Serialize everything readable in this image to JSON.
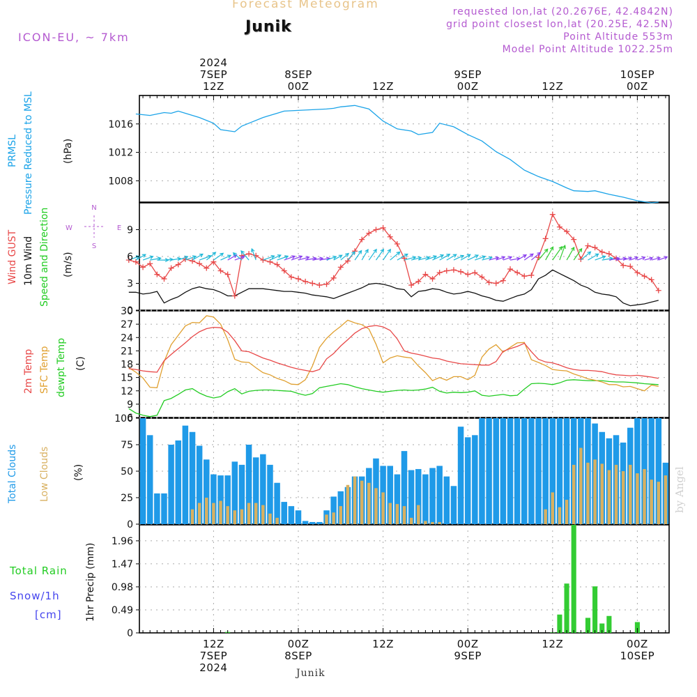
{
  "header": {
    "title": "Forecast Meteogram",
    "place": "Junik",
    "model": "ICON-EU, ~ 7km",
    "requested": "requested lon,lat (20.2676E, 42.4842N)",
    "gridpoint": "grid point closest lon,lat (20.25E, 42.5N)",
    "point_alt": "Point Altitude 553m",
    "model_alt": "Model Point Altitude 1022.25m",
    "credit": "by Angel",
    "footer": "Junik"
  },
  "colors": {
    "pressure": "#1aa3e8",
    "gust": "#e84848",
    "wind": "#111111",
    "t2m": "#e84848",
    "sfc": "#e0a030",
    "dew": "#22cc22",
    "total_cloud": "#1f9ae8",
    "low_cloud": "#d8b060",
    "rain": "#33cc33",
    "snow": "#4444ee",
    "arrow_cold": "#8a3ff0",
    "arrow_mid": "#1fb8d8",
    "arrow_warm": "#33cc33"
  },
  "time_axis": {
    "top_ticks": [
      {
        "lines": [
          "2024",
          "7SEP",
          "12Z"
        ],
        "hour": 12
      },
      {
        "lines": [
          "8SEP",
          "00Z"
        ],
        "hour": 24
      },
      {
        "lines": [
          "12Z"
        ],
        "hour": 36
      },
      {
        "lines": [
          "9SEP",
          "00Z"
        ],
        "hour": 48
      },
      {
        "lines": [
          "12Z"
        ],
        "hour": 60
      },
      {
        "lines": [
          "10SEP",
          "00Z"
        ],
        "hour": 72
      }
    ],
    "bottom_ticks": [
      {
        "lines": [
          "12Z",
          "7SEP",
          "2024"
        ],
        "hour": 12
      },
      {
        "lines": [
          "00Z",
          "8SEP"
        ],
        "hour": 24
      },
      {
        "lines": [
          "12Z"
        ],
        "hour": 36
      },
      {
        "lines": [
          "00Z",
          "9SEP"
        ],
        "hour": 48
      },
      {
        "lines": [
          "12Z"
        ],
        "hour": 60
      },
      {
        "lines": [
          "00Z",
          "10SEP"
        ],
        "hour": 72
      }
    ]
  },
  "panels": {
    "pressure": {
      "labels": [
        "PRMSL",
        "Pressure Reduced to MSL"
      ],
      "unit": "(hPa)",
      "ticks": [
        "1008",
        "1012",
        "1016"
      ]
    },
    "wind": {
      "labels": [
        "Wind GUST",
        "10m Wind",
        "Speed and Direction"
      ],
      "unit": "(m/s)",
      "ticks": [
        "0",
        "3",
        "6",
        "9"
      ],
      "compass": {
        "n": "N",
        "s": "S",
        "w": "W",
        "e": "E"
      }
    },
    "temp": {
      "labels": [
        "2m Temp",
        "SFC Temp",
        "dewpt Temp"
      ],
      "unit": "(C)",
      "ticks": [
        "6",
        "9",
        "12",
        "15",
        "18",
        "21",
        "24",
        "27",
        "30"
      ]
    },
    "cloud": {
      "labels": [
        "Total Clouds",
        "Low Clouds"
      ],
      "unit": "(%)",
      "ticks": [
        "0",
        "25",
        "50",
        "75",
        "100"
      ]
    },
    "precip": {
      "labels": [
        "Total  Rain",
        "Snow/1h",
        "[cm]"
      ],
      "unit": "1hr Precip (mm)",
      "ticks": [
        "0",
        "0.49",
        "0.98",
        "1.47",
        "1.96"
      ]
    }
  },
  "chart_data": [
    {
      "type": "line",
      "name": "pressure",
      "ylim": [
        1005,
        1020
      ],
      "x_hours": [
        1,
        3,
        5,
        6,
        7,
        8,
        10,
        12,
        13,
        15,
        16,
        17,
        19,
        21,
        22,
        24,
        26,
        28,
        29,
        30,
        32,
        34,
        36,
        38,
        40,
        41,
        43,
        44,
        46,
        48,
        50,
        52,
        54,
        56,
        58,
        60,
        62,
        63,
        65,
        66,
        68,
        70,
        72,
        74,
        75
      ],
      "values": [
        1017.4,
        1017.2,
        1017.6,
        1017.5,
        1017.8,
        1017.5,
        1016.9,
        1016.1,
        1015.2,
        1014.9,
        1015.7,
        1016.1,
        1016.9,
        1017.5,
        1017.8,
        1017.9,
        1018.0,
        1018.1,
        1018.2,
        1018.4,
        1018.6,
        1018.1,
        1016.4,
        1015.3,
        1015.0,
        1014.5,
        1014.8,
        1016.1,
        1015.6,
        1014.5,
        1013.6,
        1012.1,
        1011.0,
        1009.5,
        1008.6,
        1007.9,
        1007.0,
        1006.6,
        1006.5,
        1006.6,
        1006.1,
        1005.7,
        1005.2,
        1004.9,
        1005.0
      ]
    },
    {
      "type": "line",
      "name": "wind",
      "ylim": [
        0,
        12
      ],
      "x_hours": [
        0,
        1,
        2,
        3,
        4,
        5,
        6,
        7,
        8,
        9,
        10,
        11,
        12,
        13,
        14,
        15,
        16,
        17,
        18,
        19,
        20,
        21,
        22,
        23,
        24,
        25,
        26,
        27,
        28,
        29,
        30,
        31,
        32,
        33,
        34,
        35,
        36,
        37,
        38,
        39,
        40,
        41,
        42,
        43,
        44,
        45,
        46,
        47,
        48,
        49,
        50,
        51,
        52,
        53,
        54,
        55,
        56,
        57,
        58,
        59,
        60,
        61,
        62,
        63,
        64,
        65,
        66,
        67,
        68,
        69,
        70,
        71,
        72,
        73,
        74,
        75
      ],
      "gust": [
        5.6,
        5.4,
        4.8,
        5.2,
        4.0,
        3.5,
        4.7,
        5.1,
        5.7,
        5.5,
        5.2,
        4.7,
        5.4,
        4.4,
        4.0,
        1.6,
        6.1,
        6.3,
        6.1,
        5.6,
        5.4,
        5.1,
        4.4,
        3.7,
        3.5,
        3.2,
        3.0,
        2.8,
        2.9,
        3.6,
        4.8,
        5.5,
        6.6,
        7.9,
        8.6,
        9.0,
        9.2,
        8.2,
        7.4,
        5.8,
        2.8,
        3.2,
        4.0,
        3.5,
        4.2,
        4.4,
        4.5,
        4.3,
        4.0,
        4.2,
        3.7,
        3.1,
        3.0,
        3.3,
        4.6,
        4.2,
        3.8,
        3.9,
        5.9,
        8.0,
        10.7,
        9.3,
        8.8,
        7.9,
        5.7,
        7.2,
        7.0,
        6.5,
        6.3,
        5.8,
        5.0,
        4.9,
        4.2,
        3.8,
        3.4,
        2.2
      ],
      "speed": [
        2.0,
        2.0,
        1.8,
        1.9,
        2.1,
        0.8,
        1.2,
        1.5,
        2.0,
        2.4,
        2.6,
        2.4,
        2.3,
        2.0,
        1.6,
        1.6,
        2.0,
        2.4,
        2.4,
        2.4,
        2.3,
        2.2,
        2.1,
        2.1,
        2.0,
        1.9,
        1.7,
        1.6,
        1.5,
        1.3,
        1.6,
        1.9,
        2.2,
        2.5,
        2.9,
        3.0,
        2.9,
        2.7,
        2.4,
        2.3,
        1.5,
        2.1,
        2.2,
        2.4,
        2.3,
        2.0,
        1.8,
        1.9,
        2.1,
        1.9,
        1.6,
        1.4,
        1.1,
        1.0,
        1.3,
        1.6,
        1.8,
        2.3,
        3.5,
        3.9,
        4.5,
        4.1,
        3.7,
        3.3,
        2.8,
        2.5,
        2.0,
        1.8,
        1.7,
        1.5,
        0.8,
        0.5,
        0.6,
        0.7,
        0.9,
        1.1
      ],
      "direction_deg": [
        250,
        240,
        250,
        260,
        270,
        265,
        260,
        250,
        250,
        240,
        250,
        230,
        235,
        245,
        240,
        250,
        130,
        140,
        160,
        250,
        245,
        250,
        250,
        250,
        255,
        260,
        260,
        260,
        250,
        240,
        230,
        220,
        215,
        210,
        215,
        215,
        215,
        230,
        240,
        255,
        255,
        255,
        250,
        245,
        240,
        240,
        245,
        240,
        245,
        250,
        255,
        255,
        250,
        250,
        260,
        240,
        235,
        230,
        220,
        210,
        215,
        200,
        210,
        215,
        230,
        240,
        250,
        260,
        260,
        260,
        255,
        250,
        250,
        255,
        255,
        250
      ],
      "arrow_color": [
        "mid",
        "mid",
        "mid",
        "mid",
        "mid",
        "mid",
        "mid",
        "mid",
        "mid",
        "mid",
        "mid",
        "mid",
        "mid",
        "mid",
        "cold",
        "cold",
        "mid",
        "mid",
        "mid",
        "mid",
        "mid",
        "mid",
        "cold",
        "cold",
        "cold",
        "cold",
        "cold",
        "cold",
        "mid",
        "mid",
        "mid",
        "mid",
        "mid",
        "mid",
        "mid",
        "mid",
        "mid",
        "mid",
        "mid",
        "mid",
        "mid",
        "mid",
        "mid",
        "mid",
        "mid",
        "mid",
        "mid",
        "mid",
        "mid",
        "mid",
        "mid",
        "cold",
        "cold",
        "cold",
        "cold",
        "cold",
        "cold",
        "cold",
        "warm",
        "warm",
        "warm",
        "warm",
        "warm",
        "warm",
        "mid",
        "mid",
        "mid",
        "mid",
        "cold",
        "cold",
        "cold",
        "cold",
        "cold",
        "cold",
        "cold",
        "cold"
      ]
    },
    {
      "type": "line",
      "name": "temperature",
      "ylim": [
        6,
        30
      ],
      "x_hours": [
        0,
        1,
        2,
        3,
        4,
        5,
        6,
        7,
        8,
        9,
        10,
        11,
        12,
        13,
        14,
        15,
        16,
        17,
        18,
        19,
        20,
        21,
        22,
        23,
        24,
        25,
        26,
        27,
        28,
        29,
        30,
        31,
        32,
        33,
        34,
        35,
        36,
        37,
        38,
        39,
        40,
        41,
        42,
        43,
        44,
        45,
        46,
        47,
        48,
        49,
        50,
        51,
        52,
        53,
        54,
        55,
        56,
        57,
        58,
        59,
        60,
        61,
        62,
        63,
        64,
        65,
        66,
        67,
        68,
        69,
        70,
        71,
        72,
        73,
        74,
        75
      ],
      "t2m": [
        17.0,
        16.8,
        16.5,
        16.3,
        16.2,
        18.8,
        20.2,
        21.5,
        22.8,
        24.2,
        25.3,
        26.0,
        26.3,
        26.2,
        25.2,
        23.3,
        21.0,
        20.8,
        20.1,
        19.4,
        18.9,
        18.3,
        17.8,
        17.3,
        16.9,
        16.6,
        16.3,
        16.8,
        19.2,
        20.4,
        22.1,
        23.5,
        25.0,
        26.0,
        26.5,
        26.7,
        26.4,
        25.6,
        23.7,
        21.0,
        20.5,
        20.2,
        19.8,
        19.4,
        19.2,
        18.7,
        18.4,
        18.1,
        18.0,
        17.9,
        17.8,
        17.8,
        18.6,
        20.9,
        21.5,
        22.0,
        22.7,
        20.8,
        19.1,
        18.5,
        18.3,
        17.8,
        17.2,
        16.8,
        16.6,
        16.6,
        16.5,
        16.3,
        15.9,
        15.6,
        15.5,
        15.4,
        15.5,
        15.3,
        15.1,
        14.8
      ],
      "sfc": [
        17.2,
        16.2,
        14.9,
        12.8,
        12.7,
        18.6,
        22.4,
        24.5,
        26.6,
        27.4,
        27.3,
        28.9,
        28.6,
        27.0,
        23.5,
        19.1,
        18.5,
        18.4,
        17.2,
        16.1,
        15.6,
        14.8,
        14.3,
        13.5,
        13.4,
        14.5,
        17.6,
        21.8,
        23.8,
        25.3,
        26.5,
        27.9,
        27.3,
        26.9,
        25.9,
        22.5,
        18.3,
        19.4,
        19.9,
        19.6,
        19.4,
        17.6,
        16.1,
        14.3,
        15.0,
        14.4,
        15.2,
        15.2,
        14.5,
        15.5,
        19.6,
        21.4,
        22.4,
        20.7,
        21.8,
        22.8,
        22.9,
        19.0,
        18.4,
        17.7,
        16.8,
        16.6,
        16.5,
        15.8,
        15.3,
        14.7,
        14.4,
        14.0,
        13.4,
        13.4,
        12.9,
        13.0,
        12.5,
        12.0,
        13.3,
        13.0
      ],
      "dewpt": [
        8.0,
        7.0,
        6.5,
        6.2,
        6.5,
        9.8,
        10.3,
        11.2,
        12.2,
        12.5,
        11.5,
        10.8,
        10.4,
        10.7,
        11.8,
        12.5,
        11.3,
        11.9,
        12.1,
        12.2,
        12.2,
        12.1,
        12.0,
        11.9,
        11.4,
        11.0,
        11.4,
        12.7,
        13.0,
        13.3,
        13.6,
        13.4,
        12.9,
        12.5,
        12.2,
        11.9,
        11.7,
        11.9,
        12.1,
        12.2,
        12.1,
        12.2,
        12.4,
        12.8,
        11.9,
        11.5,
        11.7,
        11.6,
        11.7,
        12.0,
        11.0,
        10.8,
        11.0,
        11.2,
        10.9,
        11.0,
        12.4,
        13.6,
        13.7,
        13.6,
        13.4,
        13.8,
        14.4,
        14.5,
        14.4,
        14.3,
        14.3,
        14.3,
        14.1,
        14.0,
        14.0,
        13.9,
        13.8,
        13.6,
        13.5,
        13.4
      ]
    },
    {
      "type": "bar",
      "name": "clouds",
      "ylim": [
        0,
        100
      ],
      "x_hours": [
        0,
        1,
        2,
        3,
        4,
        5,
        6,
        7,
        8,
        9,
        10,
        11,
        12,
        13,
        14,
        15,
        16,
        17,
        18,
        19,
        20,
        21,
        22,
        23,
        24,
        25,
        26,
        27,
        28,
        29,
        30,
        31,
        32,
        33,
        34,
        35,
        36,
        37,
        38,
        39,
        40,
        41,
        42,
        43,
        44,
        45,
        46,
        47,
        48,
        49,
        50,
        51,
        52,
        53,
        54,
        55,
        56,
        57,
        58,
        59,
        60,
        61,
        62,
        63,
        64,
        65,
        66,
        67,
        68,
        69,
        70,
        71,
        72,
        73,
        74,
        75,
        76
      ],
      "total": [
        63,
        72,
        100,
        84,
        29,
        29,
        75,
        79,
        93,
        87,
        74,
        61,
        47,
        46,
        46,
        59,
        56,
        75,
        63,
        66,
        56,
        39,
        21,
        17,
        13,
        3,
        2,
        2,
        13,
        26,
        31,
        35,
        45,
        45,
        53,
        62,
        55,
        55,
        47,
        69,
        51,
        52,
        47,
        53,
        55,
        45,
        36,
        92,
        82,
        84,
        100,
        100,
        100,
        100,
        100,
        100,
        100,
        100,
        100,
        100,
        100,
        100,
        100,
        100,
        100,
        100,
        95,
        87,
        81,
        84,
        77,
        91,
        100,
        100,
        100,
        100,
        58
      ],
      "low": [
        0,
        0,
        0,
        0,
        0,
        0,
        0,
        0,
        0,
        14,
        20,
        25,
        20,
        22,
        17,
        13,
        14,
        20,
        20,
        18,
        10,
        6,
        0,
        0,
        0,
        0,
        0,
        0,
        9,
        11,
        17,
        37,
        45,
        41,
        39,
        34,
        30,
        20,
        19,
        17,
        6,
        18,
        3,
        2,
        2,
        0,
        0,
        0,
        0,
        0,
        0,
        0,
        0,
        0,
        0,
        0,
        0,
        0,
        0,
        14,
        30,
        16,
        23,
        56,
        72,
        58,
        61,
        57,
        51,
        56,
        50,
        56,
        48,
        52,
        42,
        40,
        46
      ]
    },
    {
      "type": "bar",
      "name": "precipitation",
      "ylim": [
        0,
        2.3
      ],
      "x_hours": [
        12,
        13,
        14,
        15,
        16,
        17,
        18,
        19,
        20,
        21,
        22,
        23,
        24,
        25,
        26,
        27,
        28,
        29,
        30,
        31,
        32,
        33,
        34,
        35,
        36,
        37,
        38,
        39,
        40,
        41,
        42,
        43,
        44,
        45,
        46,
        47,
        48,
        49,
        50,
        51,
        52,
        53,
        54,
        55,
        56,
        57,
        58,
        59,
        60,
        61,
        62,
        63,
        64,
        65,
        66,
        67,
        68,
        69,
        70,
        71,
        72,
        73,
        74,
        75
      ],
      "rain": [
        0,
        0,
        0.02,
        0,
        0,
        0,
        0,
        0,
        0,
        0,
        0,
        0,
        0,
        0,
        0,
        0,
        0,
        0,
        0,
        0,
        0,
        0,
        0,
        0,
        0,
        0,
        0,
        0,
        0,
        0,
        0,
        0,
        0,
        0,
        0,
        0,
        0,
        0,
        0,
        0,
        0,
        0,
        0,
        0,
        0,
        0,
        0,
        0,
        0.01,
        0.39,
        1.05,
        2.3,
        0.01,
        0.32,
        0.99,
        0.2,
        0.36,
        0,
        0,
        0,
        0.23,
        0,
        0,
        0
      ]
    }
  ]
}
